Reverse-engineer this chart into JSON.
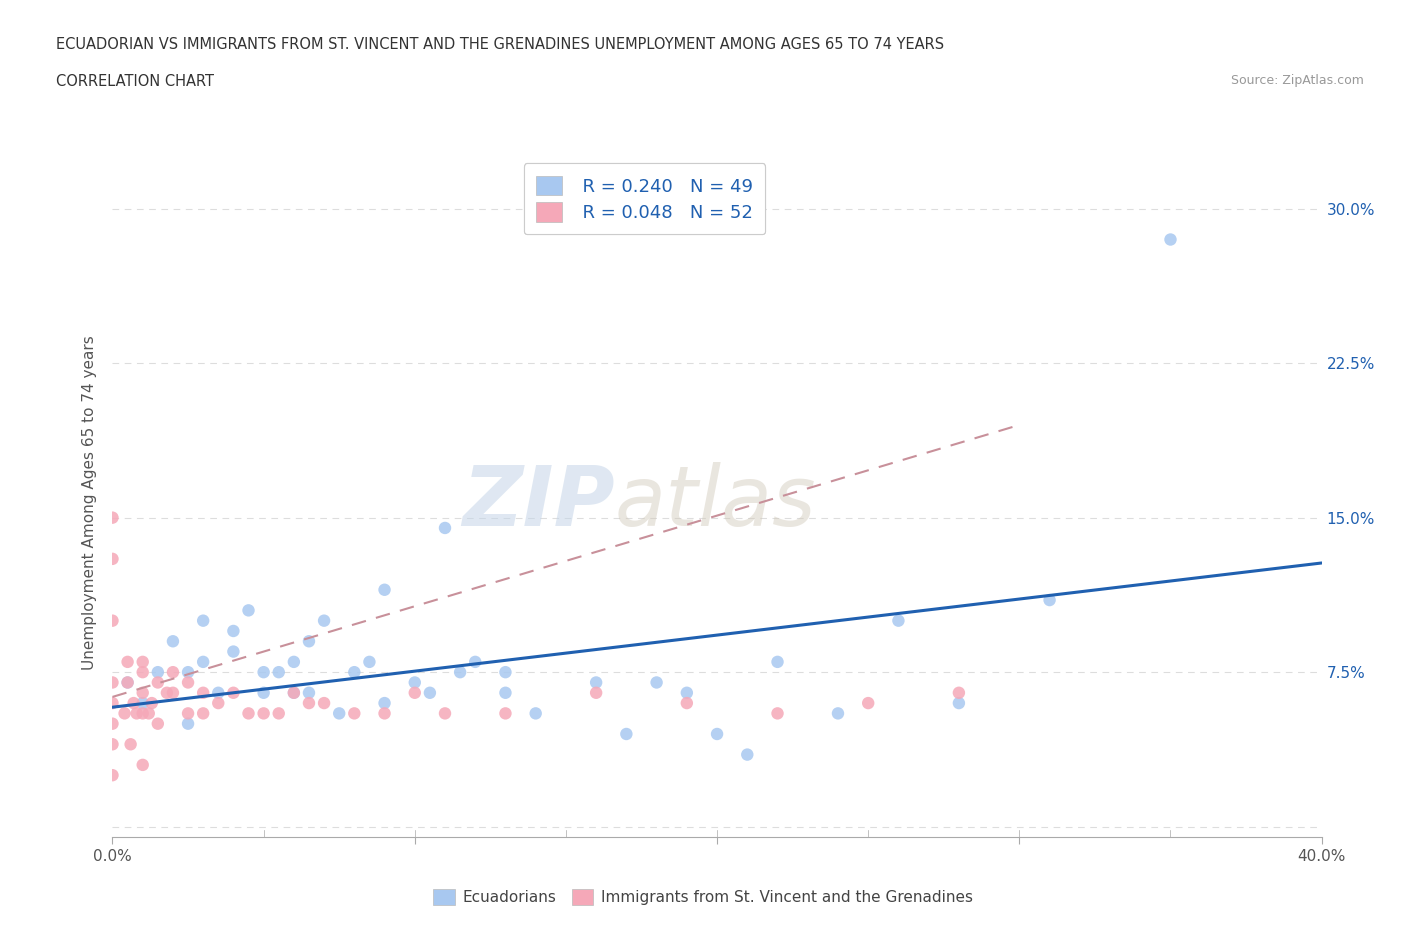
{
  "title_line1": "ECUADORIAN VS IMMIGRANTS FROM ST. VINCENT AND THE GRENADINES UNEMPLOYMENT AMONG AGES 65 TO 74 YEARS",
  "title_line2": "CORRELATION CHART",
  "source": "Source: ZipAtlas.com",
  "ylabel": "Unemployment Among Ages 65 to 74 years",
  "watermark": "ZIPatlas",
  "blue_R": "R = 0.240",
  "blue_N": "N = 49",
  "pink_R": "R = 0.048",
  "pink_N": "N = 52",
  "blue_color": "#A8C8F0",
  "pink_color": "#F5A8B8",
  "blue_line_color": "#2060B0",
  "pink_line_color": "#C8909A",
  "xlim": [
    0.0,
    0.4
  ],
  "ylim": [
    -0.005,
    0.32
  ],
  "xticks": [
    0.0,
    0.1,
    0.2,
    0.3,
    0.4
  ],
  "xticklabels_bottom": [
    "0.0%",
    "",
    "",
    "",
    "40.0%"
  ],
  "yticks": [
    0.0,
    0.075,
    0.15,
    0.225,
    0.3
  ],
  "yticklabels_right": [
    "",
    "7.5%",
    "15.0%",
    "22.5%",
    "30.0%"
  ],
  "blue_scatter_x": [
    0.005,
    0.01,
    0.015,
    0.02,
    0.025,
    0.025,
    0.03,
    0.03,
    0.035,
    0.04,
    0.04,
    0.045,
    0.05,
    0.05,
    0.055,
    0.06,
    0.06,
    0.065,
    0.065,
    0.07,
    0.075,
    0.08,
    0.085,
    0.09,
    0.09,
    0.1,
    0.105,
    0.11,
    0.115,
    0.12,
    0.13,
    0.13,
    0.14,
    0.16,
    0.17,
    0.18,
    0.19,
    0.2,
    0.21,
    0.22,
    0.24,
    0.26,
    0.28,
    0.31,
    0.35
  ],
  "blue_scatter_y": [
    0.07,
    0.06,
    0.075,
    0.09,
    0.075,
    0.05,
    0.08,
    0.1,
    0.065,
    0.085,
    0.095,
    0.105,
    0.065,
    0.075,
    0.075,
    0.08,
    0.065,
    0.065,
    0.09,
    0.1,
    0.055,
    0.075,
    0.08,
    0.06,
    0.115,
    0.07,
    0.065,
    0.145,
    0.075,
    0.08,
    0.075,
    0.065,
    0.055,
    0.07,
    0.045,
    0.07,
    0.065,
    0.045,
    0.035,
    0.08,
    0.055,
    0.1,
    0.06,
    0.11,
    0.285
  ],
  "pink_scatter_x": [
    0.0,
    0.0,
    0.0,
    0.0,
    0.0,
    0.0,
    0.0,
    0.0,
    0.004,
    0.005,
    0.005,
    0.006,
    0.007,
    0.008,
    0.01,
    0.01,
    0.01,
    0.01,
    0.01,
    0.012,
    0.013,
    0.015,
    0.015,
    0.018,
    0.02,
    0.02,
    0.025,
    0.025,
    0.03,
    0.03,
    0.035,
    0.04,
    0.045,
    0.05,
    0.055,
    0.06,
    0.065,
    0.07,
    0.08,
    0.09,
    0.1,
    0.11,
    0.13,
    0.16,
    0.19,
    0.22,
    0.25,
    0.28
  ],
  "pink_scatter_y": [
    0.05,
    0.07,
    0.1,
    0.13,
    0.15,
    0.06,
    0.04,
    0.025,
    0.055,
    0.07,
    0.08,
    0.04,
    0.06,
    0.055,
    0.055,
    0.065,
    0.075,
    0.08,
    0.03,
    0.055,
    0.06,
    0.05,
    0.07,
    0.065,
    0.065,
    0.075,
    0.055,
    0.07,
    0.055,
    0.065,
    0.06,
    0.065,
    0.055,
    0.055,
    0.055,
    0.065,
    0.06,
    0.06,
    0.055,
    0.055,
    0.065,
    0.055,
    0.055,
    0.065,
    0.06,
    0.055,
    0.06,
    0.065
  ],
  "blue_line_x": [
    0.0,
    0.4
  ],
  "blue_line_y": [
    0.058,
    0.128
  ],
  "pink_line_x": [
    0.0,
    0.3
  ],
  "pink_line_y": [
    0.063,
    0.195
  ],
  "background_color": "#FFFFFF",
  "grid_color": "#DDDDDD",
  "axis_color": "#AAAAAA",
  "label_color_blue": "#2060B0",
  "label_color_dark": "#444444",
  "legend_text_color": "#2060B0"
}
